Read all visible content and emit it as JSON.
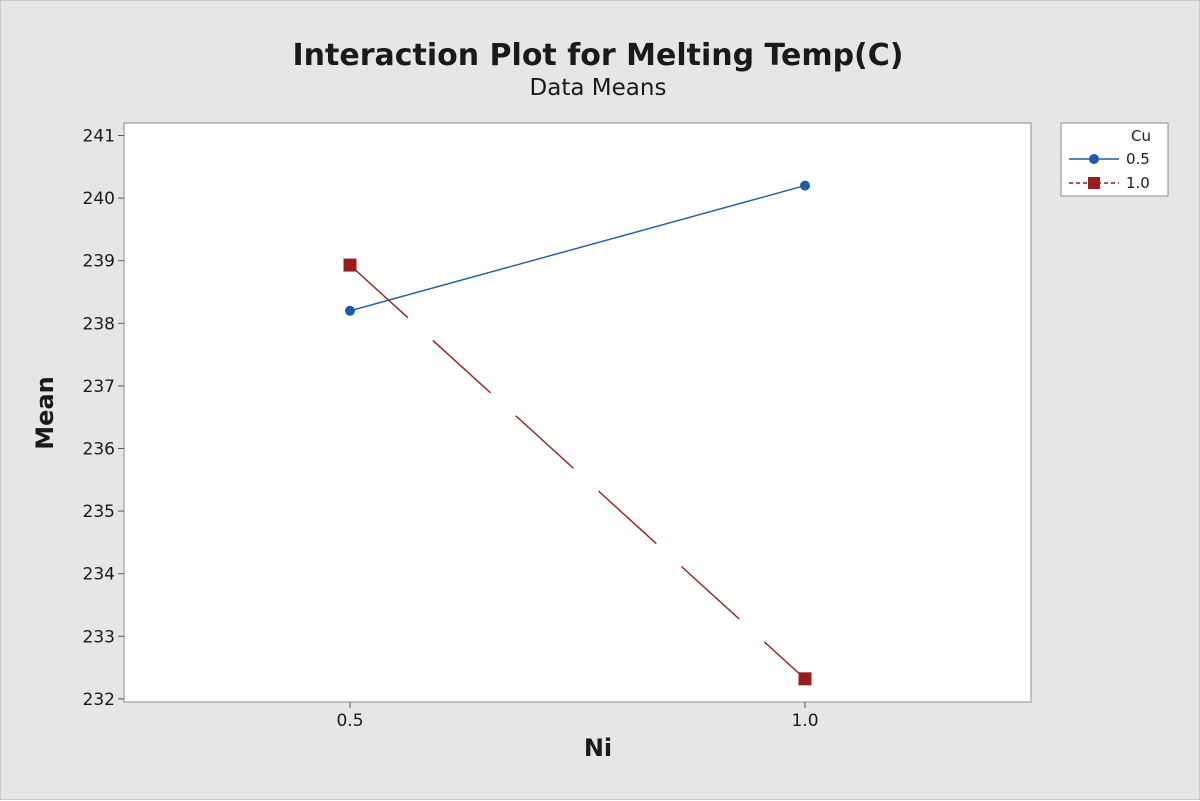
{
  "chart_data": {
    "type": "line",
    "title": "Interaction Plot for Melting Temp(C)",
    "subtitle": "Data Means",
    "xlabel": "Ni",
    "ylabel": "Mean",
    "x_categories": [
      "0.5",
      "1.0"
    ],
    "ylim": [
      231.95,
      241.2
    ],
    "yticks": [
      232,
      233,
      234,
      235,
      236,
      237,
      238,
      239,
      240,
      241
    ],
    "grid": false,
    "legend": {
      "title": "Cu",
      "placement": "right"
    },
    "series": [
      {
        "name": "0.5",
        "values": [
          238.2,
          240.2
        ],
        "color": "#1f5ba8",
        "marker": "circle",
        "line_style": "solid"
      },
      {
        "name": "1.0",
        "values": [
          238.93,
          232.32
        ],
        "color": "#9b1c1c",
        "marker": "square",
        "line_style": "dashed"
      }
    ]
  }
}
